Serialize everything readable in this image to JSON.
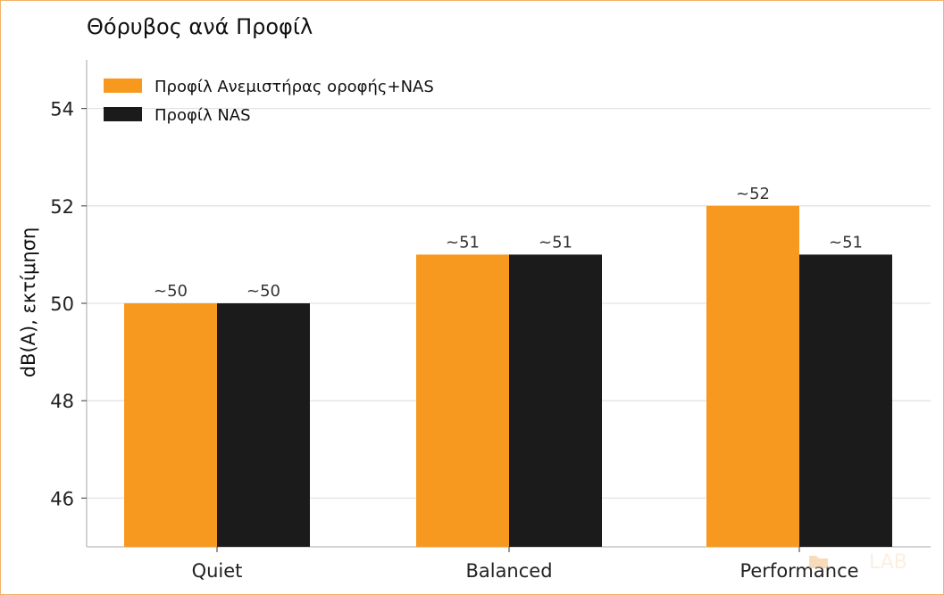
{
  "chart_data": {
    "type": "bar",
    "title": "Θόρυβος ανά Προφίλ",
    "xlabel": "",
    "ylabel": "dB(A), εκτίμηση",
    "categories": [
      "Quiet",
      "Balanced",
      "Performance"
    ],
    "ylim": [
      45,
      55
    ],
    "yticks": [
      46,
      48,
      50,
      52,
      54
    ],
    "grid": "horizontal",
    "legend_position": "top-left",
    "series": [
      {
        "name": "Προφίλ Ανεμιστήρας οροφής+NAS",
        "color": "#f7981f",
        "values": [
          50,
          51,
          52
        ],
        "labels": [
          "~50",
          "~51",
          "~52"
        ]
      },
      {
        "name": "Προφίλ NAS",
        "color": "#1b1b1b",
        "values": [
          50,
          51,
          51
        ],
        "labels": [
          "~50",
          "~51",
          "~51"
        ]
      }
    ]
  },
  "watermark": {
    "text": "LAB",
    "icon": "folder-icon"
  }
}
